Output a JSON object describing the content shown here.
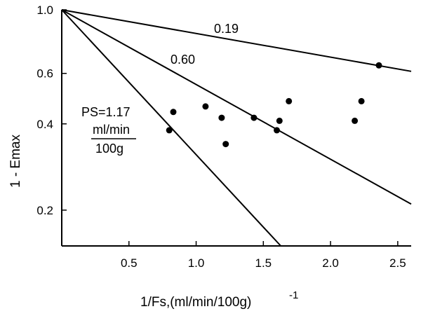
{
  "chart_data": {
    "type": "scatter",
    "title": "",
    "xlabel": "1/Fs,(ml/min/100g)",
    "xlabel_exponent": "-1",
    "ylabel": "1 - Emax",
    "y_scale": "log",
    "xlim": [
      0,
      2.6
    ],
    "ylim": [
      0.15,
      1.0
    ],
    "x_ticks": [
      {
        "value": 0.5,
        "label": "0.5"
      },
      {
        "value": 1.0,
        "label": "1.0"
      },
      {
        "value": 1.5,
        "label": "1.5"
      },
      {
        "value": 2.0,
        "label": "2.0"
      },
      {
        "value": 2.5,
        "label": "2.5"
      }
    ],
    "y_ticks": [
      {
        "value": 1.0,
        "label": "1.0"
      },
      {
        "value": 0.6,
        "label": "0.6"
      },
      {
        "value": 0.4,
        "label": "0.4"
      },
      {
        "value": 0.2,
        "label": "0.2"
      }
    ],
    "grid": false,
    "points": [
      {
        "x": 0.8,
        "y": 0.38
      },
      {
        "x": 0.83,
        "y": 0.44
      },
      {
        "x": 1.07,
        "y": 0.46
      },
      {
        "x": 1.19,
        "y": 0.42
      },
      {
        "x": 1.22,
        "y": 0.34
      },
      {
        "x": 1.43,
        "y": 0.42
      },
      {
        "x": 1.6,
        "y": 0.38
      },
      {
        "x": 1.62,
        "y": 0.41
      },
      {
        "x": 1.69,
        "y": 0.48
      },
      {
        "x": 2.18,
        "y": 0.41
      },
      {
        "x": 2.23,
        "y": 0.48
      },
      {
        "x": 2.36,
        "y": 0.64
      }
    ],
    "curves": [
      {
        "ps": 0.19,
        "label": "0.19",
        "x": [
          0,
          2.6
        ],
        "y": [
          1.0,
          0.61
        ]
      },
      {
        "ps": 0.6,
        "label": "0.60",
        "x": [
          0,
          2.6
        ],
        "y": [
          1.0,
          0.21
        ]
      },
      {
        "ps": 1.17,
        "label": "PS=1.17",
        "x": [
          0,
          1.63
        ],
        "y": [
          1.0,
          0.15
        ]
      }
    ],
    "annotation_unit": {
      "numerator": "ml/min",
      "denominator": "100g"
    }
  }
}
